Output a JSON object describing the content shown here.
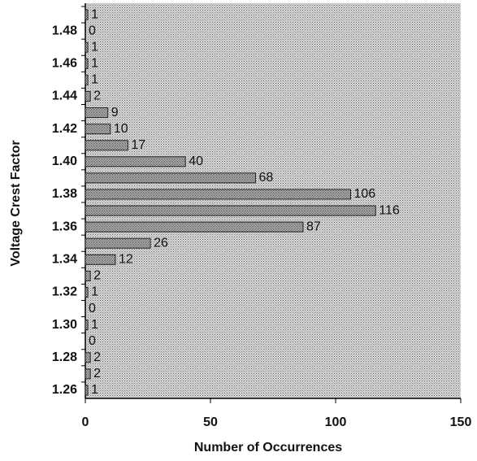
{
  "chart_data": {
    "type": "hbar",
    "x_label": "Number of Occurrences",
    "y_label": "Voltage Crest Factor",
    "categories": [
      null,
      "1.48",
      null,
      "1.46",
      null,
      "1.44",
      null,
      "1.42",
      null,
      "1.40",
      null,
      "1.38",
      null,
      "1.36",
      null,
      "1.34",
      null,
      "1.32",
      null,
      "1.30",
      null,
      "1.28",
      null,
      "1.26"
    ],
    "values": [
      1,
      0,
      1,
      1,
      1,
      2,
      9,
      10,
      17,
      40,
      68,
      106,
      116,
      87,
      26,
      12,
      2,
      1,
      0,
      1,
      0,
      2,
      2,
      1
    ],
    "xlim": [
      0,
      150
    ],
    "xticks": [
      0,
      50,
      100,
      150
    ],
    "color": "#9a9a9a",
    "background": "#c4c4c4"
  }
}
